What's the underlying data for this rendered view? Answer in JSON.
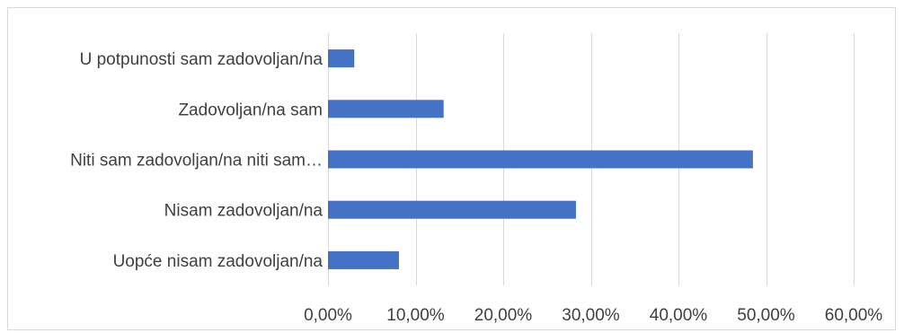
{
  "chart_data": {
    "type": "bar",
    "orientation": "horizontal",
    "categories": [
      "U potpunosti sam zadovoljan/na",
      "Zadovoljan/na sam",
      "Niti sam zadovoljan/na niti sam…",
      "Nisam zadovoljan/na",
      "Uopće nisam zadovoljan/na"
    ],
    "values": [
      3.0,
      13.2,
      48.5,
      28.3,
      8.1
    ],
    "value_unit": "%",
    "xlim": [
      0,
      60
    ],
    "x_ticks": [
      0,
      10,
      20,
      30,
      40,
      50,
      60
    ],
    "x_tick_labels": [
      "0,00%",
      "10,00%",
      "20,00%",
      "30,00%",
      "40,00%",
      "50,00%",
      "60,00%"
    ],
    "grid": "vertical",
    "legend": "none",
    "colors": {
      "bar": "#4472c4",
      "grid": "#d9d9d9",
      "text": "#404040"
    }
  }
}
